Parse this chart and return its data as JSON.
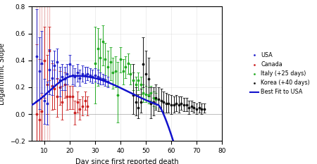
{
  "xlabel": "Day since first reported death",
  "ylabel": "Logarithmic Slope",
  "xlim": [
    5,
    80
  ],
  "ylim": [
    -0.2,
    0.8
  ],
  "yticks": [
    -0.2,
    0.0,
    0.2,
    0.4,
    0.6,
    0.8
  ],
  "xticks": [
    10,
    20,
    30,
    40,
    50,
    60,
    70,
    80
  ],
  "usa_color": "#2222cc",
  "canada_color": "#cc2222",
  "italy_color": "#22aa22",
  "korea_color": "#111111",
  "fit_color": "#1111cc",
  "usa_x": [
    7,
    8,
    9,
    10,
    11,
    12,
    13,
    14,
    15,
    16,
    17,
    18,
    19,
    20,
    21,
    22,
    23,
    24,
    25,
    26,
    27,
    28,
    29,
    30,
    31,
    32,
    33,
    34,
    35
  ],
  "usa_y": [
    0.43,
    0.32,
    0.38,
    0.1,
    0.08,
    0.33,
    0.27,
    0.36,
    0.39,
    0.25,
    0.28,
    0.26,
    0.3,
    0.37,
    0.29,
    0.28,
    0.31,
    0.27,
    0.3,
    0.29,
    0.3,
    0.29,
    0.28,
    0.29,
    0.28,
    0.27,
    0.26,
    0.25,
    0.24
  ],
  "usa_yerr_lo": [
    0.33,
    0.28,
    0.22,
    0.17,
    0.16,
    0.18,
    0.13,
    0.15,
    0.13,
    0.12,
    0.1,
    0.08,
    0.08,
    0.08,
    0.07,
    0.07,
    0.07,
    0.06,
    0.06,
    0.06,
    0.05,
    0.05,
    0.05,
    0.05,
    0.05,
    0.05,
    0.04,
    0.04,
    0.04
  ],
  "usa_yerr_hi": [
    0.35,
    0.25,
    0.24,
    0.16,
    0.16,
    0.15,
    0.13,
    0.11,
    0.1,
    0.1,
    0.09,
    0.09,
    0.07,
    0.07,
    0.07,
    0.06,
    0.06,
    0.06,
    0.06,
    0.06,
    0.05,
    0.05,
    0.05,
    0.05,
    0.05,
    0.04,
    0.04,
    0.04,
    0.04
  ],
  "canada_x": [
    7,
    8,
    9,
    10,
    11,
    12,
    13,
    14,
    15,
    16,
    17,
    18,
    19,
    20,
    21,
    22,
    23,
    24,
    25,
    26,
    27
  ],
  "canada_y": [
    0.0,
    -0.04,
    0.02,
    0.4,
    0.22,
    0.47,
    0.21,
    0.19,
    0.13,
    0.2,
    0.09,
    0.22,
    0.13,
    0.13,
    0.13,
    0.01,
    0.09,
    0.04,
    0.06,
    0.1,
    0.06
  ],
  "canada_yerr_lo": [
    0.5,
    0.47,
    0.35,
    0.28,
    0.22,
    0.22,
    0.18,
    0.15,
    0.15,
    0.13,
    0.13,
    0.1,
    0.1,
    0.09,
    0.09,
    0.09,
    0.08,
    0.08,
    0.07,
    0.07,
    0.07
  ],
  "canada_yerr_hi": [
    0.52,
    0.45,
    0.35,
    0.25,
    0.22,
    0.18,
    0.17,
    0.14,
    0.14,
    0.12,
    0.12,
    0.09,
    0.09,
    0.08,
    0.08,
    0.09,
    0.08,
    0.07,
    0.07,
    0.07,
    0.07
  ],
  "italy_x": [
    30,
    31,
    32,
    33,
    34,
    35,
    36,
    37,
    38,
    39,
    40,
    41,
    42,
    43,
    44,
    45,
    46,
    47,
    48,
    49,
    50,
    51,
    52,
    53,
    54
  ],
  "italy_y": [
    0.38,
    0.49,
    0.42,
    0.54,
    0.41,
    0.35,
    0.39,
    0.31,
    0.32,
    0.14,
    0.41,
    0.32,
    0.35,
    0.38,
    0.3,
    0.25,
    0.22,
    0.25,
    0.22,
    0.16,
    0.15,
    0.14,
    0.16,
    0.12,
    0.11
  ],
  "italy_yerr_lo": [
    0.3,
    0.28,
    0.15,
    0.18,
    0.15,
    0.14,
    0.14,
    0.12,
    0.12,
    0.2,
    0.1,
    0.1,
    0.08,
    0.08,
    0.08,
    0.07,
    0.07,
    0.07,
    0.07,
    0.07,
    0.06,
    0.06,
    0.06,
    0.06,
    0.06
  ],
  "italy_yerr_hi": [
    0.27,
    0.15,
    0.14,
    0.12,
    0.12,
    0.12,
    0.11,
    0.11,
    0.11,
    0.25,
    0.09,
    0.09,
    0.08,
    0.07,
    0.07,
    0.06,
    0.06,
    0.06,
    0.06,
    0.06,
    0.06,
    0.06,
    0.05,
    0.05,
    0.05
  ],
  "korea_x": [
    45,
    46,
    47,
    48,
    49,
    50,
    51,
    52,
    53,
    54,
    55,
    56,
    57,
    58,
    59,
    60,
    61,
    62,
    63,
    64,
    65,
    66,
    67,
    68,
    69,
    70,
    71,
    72,
    73
  ],
  "korea_y": [
    0.14,
    0.09,
    0.05,
    0.09,
    0.37,
    0.3,
    0.26,
    0.08,
    0.09,
    0.12,
    0.11,
    0.1,
    0.09,
    0.08,
    0.08,
    0.07,
    0.07,
    0.08,
    0.07,
    0.08,
    0.07,
    0.07,
    0.05,
    0.06,
    0.05,
    0.04,
    0.05,
    0.04,
    0.04
  ],
  "korea_yerr_lo": [
    0.14,
    0.1,
    0.08,
    0.08,
    0.17,
    0.15,
    0.13,
    0.11,
    0.1,
    0.09,
    0.09,
    0.08,
    0.08,
    0.07,
    0.07,
    0.07,
    0.06,
    0.06,
    0.06,
    0.05,
    0.05,
    0.05,
    0.05,
    0.04,
    0.04,
    0.04,
    0.04,
    0.04,
    0.03
  ],
  "korea_yerr_hi": [
    0.23,
    0.11,
    0.1,
    0.1,
    0.2,
    0.17,
    0.16,
    0.12,
    0.11,
    0.1,
    0.09,
    0.09,
    0.08,
    0.08,
    0.07,
    0.07,
    0.06,
    0.06,
    0.06,
    0.05,
    0.05,
    0.05,
    0.05,
    0.04,
    0.04,
    0.04,
    0.04,
    0.04,
    0.04
  ],
  "canada_vlines_x": [
    7,
    8,
    9,
    10,
    11,
    12
  ],
  "background_color": "#ffffff",
  "grid_color": "#cccccc",
  "legend_labels": [
    "USA",
    "Canada",
    "Italy (+25 days)",
    "Korea (+40 days)",
    "Best Fit to USA"
  ]
}
